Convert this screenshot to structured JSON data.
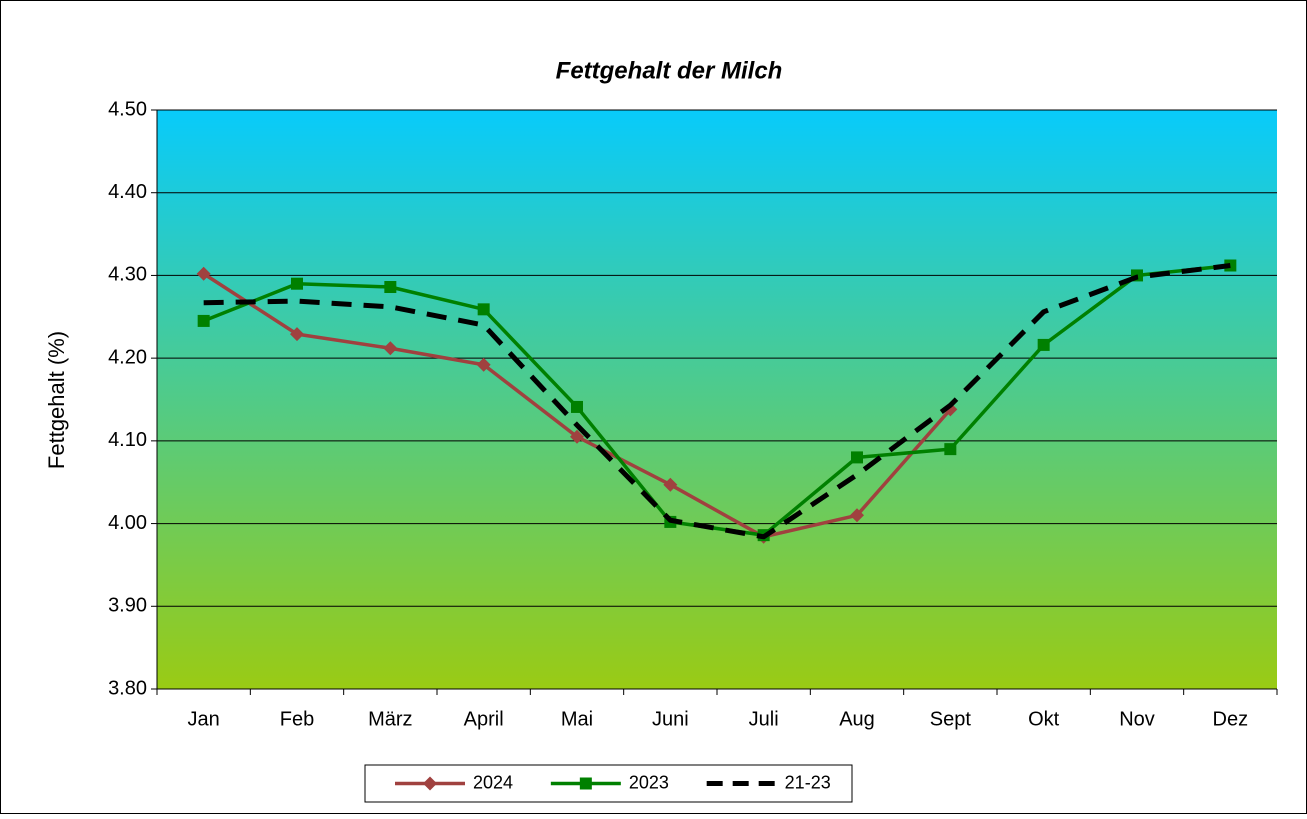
{
  "chart_data": {
    "type": "line",
    "title": "Fettgehalt der Milch",
    "y_label": "Fettgehalt (%)",
    "categories": [
      "Jan",
      "Feb",
      "März",
      "April",
      "Mai",
      "Juni",
      "Juli",
      "Aug",
      "Sept",
      "Okt",
      "Nov",
      "Dez"
    ],
    "series": [
      {
        "name": "2024",
        "color": "#a0413f",
        "marker": "diamond",
        "dash": false,
        "values": [
          4.302,
          4.229,
          4.212,
          4.192,
          4.105,
          4.047,
          3.984,
          4.01,
          4.138,
          null,
          null,
          null
        ]
      },
      {
        "name": "2023",
        "color": "#008000",
        "marker": "square",
        "dash": false,
        "values": [
          4.245,
          4.29,
          4.286,
          4.259,
          4.141,
          4.002,
          3.986,
          4.08,
          4.09,
          4.216,
          4.3,
          4.312
        ]
      },
      {
        "name": "21-23",
        "color": "#000000",
        "marker": "none",
        "dash": true,
        "values": [
          4.267,
          4.269,
          4.262,
          4.24,
          4.119,
          4.004,
          3.984,
          4.059,
          4.143,
          4.256,
          4.298,
          4.312
        ]
      }
    ],
    "ylim": [
      3.8,
      4.5
    ],
    "yticks": [
      {
        "value": 3.8,
        "label": "3.80"
      },
      {
        "value": 3.9,
        "label": "3.90"
      },
      {
        "value": 4.0,
        "label": "4.00"
      },
      {
        "value": 4.1,
        "label": "4.10"
      },
      {
        "value": 4.2,
        "label": "4.20"
      },
      {
        "value": 4.3,
        "label": "4.30"
      },
      {
        "value": 4.4,
        "label": "4.40"
      },
      {
        "value": 4.5,
        "label": "4.50"
      }
    ],
    "grid": true,
    "legend": "bottom",
    "background_gradient": [
      "#08cbfb",
      "#9acb14"
    ]
  }
}
